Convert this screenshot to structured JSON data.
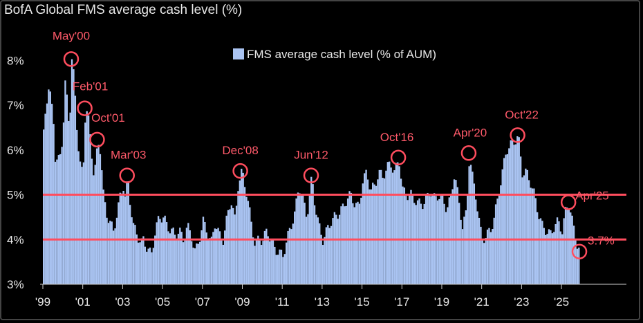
{
  "chart_data": {
    "type": "bar",
    "title": "BofA Global FMS average cash level (%)",
    "legend": "FMS average cash level (% of AUM)",
    "legend_position": "top-center",
    "xlabel": "",
    "ylabel": "",
    "ylim": [
      3,
      8.5
    ],
    "xlim": [
      1999.0,
      2026.8
    ],
    "yticks": [
      "3%",
      "4%",
      "5%",
      "6%",
      "7%",
      "8%"
    ],
    "yticks_values": [
      3,
      4,
      5,
      6,
      7,
      8
    ],
    "xticks": [
      "'99",
      "'01",
      "'03",
      "'05",
      "'07",
      "'09",
      "'11",
      "'13",
      "'15",
      "'17",
      "'19",
      "'21",
      "'23",
      "'25"
    ],
    "xticks_values": [
      1999,
      2001,
      2003,
      2005,
      2007,
      2009,
      2011,
      2013,
      2015,
      2017,
      2019,
      2021,
      2023,
      2025
    ],
    "bar_color": "#aac4f2",
    "reference_lines": [
      4.0,
      5.0
    ],
    "reference_color": "#ff4d5e",
    "series_points": [
      [
        1999.0,
        6.4
      ],
      [
        1999.1,
        7.0
      ],
      [
        1999.25,
        7.3
      ],
      [
        1999.4,
        7.1
      ],
      [
        1999.5,
        6.7
      ],
      [
        1999.6,
        5.6
      ],
      [
        1999.75,
        5.8
      ],
      [
        1999.9,
        6.1
      ],
      [
        2000.0,
        6.6
      ],
      [
        2000.1,
        7.6
      ],
      [
        2000.2,
        7.0
      ],
      [
        2000.3,
        6.5
      ],
      [
        2000.42,
        8.0
      ],
      [
        2000.55,
        7.5
      ],
      [
        2000.7,
        6.3
      ],
      [
        2000.8,
        5.7
      ],
      [
        2000.9,
        5.5
      ],
      [
        2001.0,
        5.8
      ],
      [
        2001.1,
        6.9
      ],
      [
        2001.2,
        6.8
      ],
      [
        2001.3,
        6.5
      ],
      [
        2001.4,
        6.0
      ],
      [
        2001.5,
        5.5
      ],
      [
        2001.6,
        5.6
      ],
      [
        2001.72,
        6.2
      ],
      [
        2001.85,
        6.0
      ],
      [
        2002.0,
        5.0
      ],
      [
        2002.15,
        4.6
      ],
      [
        2002.3,
        4.4
      ],
      [
        2002.5,
        4.2
      ],
      [
        2002.7,
        4.6
      ],
      [
        2002.85,
        5.0
      ],
      [
        2003.0,
        5.2
      ],
      [
        2003.1,
        4.9
      ],
      [
        2003.22,
        5.4
      ],
      [
        2003.35,
        4.8
      ],
      [
        2003.5,
        4.3
      ],
      [
        2003.7,
        4.1
      ],
      [
        2003.9,
        3.9
      ],
      [
        2004.0,
        4.0
      ],
      [
        2004.2,
        3.8
      ],
      [
        2004.4,
        3.65
      ],
      [
        2004.6,
        4.2
      ],
      [
        2004.8,
        4.5
      ],
      [
        2005.0,
        4.5
      ],
      [
        2005.2,
        4.3
      ],
      [
        2005.4,
        4.2
      ],
      [
        2005.6,
        4.1
      ],
      [
        2005.8,
        4.2
      ],
      [
        2006.0,
        4.0
      ],
      [
        2006.2,
        4.3
      ],
      [
        2006.4,
        4.1
      ],
      [
        2006.6,
        3.7
      ],
      [
        2006.8,
        4.0
      ],
      [
        2007.0,
        4.4
      ],
      [
        2007.2,
        4.2
      ],
      [
        2007.4,
        3.9
      ],
      [
        2007.6,
        4.4
      ],
      [
        2007.8,
        4.1
      ],
      [
        2008.0,
        4.0
      ],
      [
        2008.2,
        4.5
      ],
      [
        2008.4,
        4.9
      ],
      [
        2008.6,
        4.4
      ],
      [
        2008.75,
        5.2
      ],
      [
        2008.9,
        5.5
      ],
      [
        2009.0,
        5.4
      ],
      [
        2009.2,
        5.0
      ],
      [
        2009.4,
        4.4
      ],
      [
        2009.6,
        3.9
      ],
      [
        2009.8,
        4.0
      ],
      [
        2010.0,
        4.0
      ],
      [
        2010.2,
        4.2
      ],
      [
        2010.4,
        4.0
      ],
      [
        2010.6,
        3.8
      ],
      [
        2010.8,
        3.7
      ],
      [
        2011.0,
        3.65
      ],
      [
        2011.2,
        4.0
      ],
      [
        2011.4,
        4.3
      ],
      [
        2011.6,
        4.6
      ],
      [
        2011.8,
        5.2
      ],
      [
        2012.0,
        4.9
      ],
      [
        2012.2,
        4.5
      ],
      [
        2012.45,
        5.4
      ],
      [
        2012.6,
        4.8
      ],
      [
        2012.8,
        4.3
      ],
      [
        2013.0,
        4.0
      ],
      [
        2013.2,
        4.2
      ],
      [
        2013.4,
        4.4
      ],
      [
        2013.6,
        4.5
      ],
      [
        2013.8,
        4.6
      ],
      [
        2014.0,
        4.7
      ],
      [
        2014.2,
        4.9
      ],
      [
        2014.4,
        5.0
      ],
      [
        2014.6,
        4.8
      ],
      [
        2014.8,
        4.7
      ],
      [
        2015.0,
        5.3
      ],
      [
        2015.2,
        5.5
      ],
      [
        2015.4,
        5.1
      ],
      [
        2015.6,
        5.2
      ],
      [
        2015.8,
        5.5
      ],
      [
        2016.0,
        5.4
      ],
      [
        2016.2,
        5.6
      ],
      [
        2016.4,
        5.7
      ],
      [
        2016.6,
        5.5
      ],
      [
        2016.82,
        5.8
      ],
      [
        2017.0,
        5.1
      ],
      [
        2017.2,
        5.0
      ],
      [
        2017.4,
        5.0
      ],
      [
        2017.6,
        4.9
      ],
      [
        2017.8,
        4.8
      ],
      [
        2018.0,
        4.8
      ],
      [
        2018.2,
        4.9
      ],
      [
        2018.4,
        5.1
      ],
      [
        2018.6,
        4.9
      ],
      [
        2018.8,
        5.0
      ],
      [
        2019.0,
        4.9
      ],
      [
        2019.2,
        4.7
      ],
      [
        2019.4,
        4.9
      ],
      [
        2019.6,
        5.5
      ],
      [
        2019.8,
        4.9
      ],
      [
        2020.0,
        4.3
      ],
      [
        2020.2,
        4.6
      ],
      [
        2020.35,
        5.9
      ],
      [
        2020.5,
        5.4
      ],
      [
        2020.7,
        4.9
      ],
      [
        2020.9,
        4.2
      ],
      [
        2021.0,
        4.0
      ],
      [
        2021.2,
        4.1
      ],
      [
        2021.4,
        4.2
      ],
      [
        2021.6,
        4.5
      ],
      [
        2021.8,
        5.0
      ],
      [
        2022.0,
        5.5
      ],
      [
        2022.2,
        6.0
      ],
      [
        2022.4,
        6.1
      ],
      [
        2022.6,
        6.2
      ],
      [
        2022.8,
        6.3
      ],
      [
        2023.0,
        5.5
      ],
      [
        2023.2,
        5.5
      ],
      [
        2023.4,
        5.3
      ],
      [
        2023.6,
        5.0
      ],
      [
        2023.8,
        4.6
      ],
      [
        2024.0,
        4.3
      ],
      [
        2024.2,
        4.2
      ],
      [
        2024.4,
        4.1
      ],
      [
        2024.6,
        4.3
      ],
      [
        2024.8,
        4.4
      ],
      [
        2025.0,
        4.2
      ],
      [
        2025.2,
        4.7
      ],
      [
        2025.35,
        4.8
      ],
      [
        2025.55,
        4.3
      ],
      [
        2025.75,
        3.9
      ],
      [
        2025.9,
        3.7
      ]
    ],
    "annotations": [
      {
        "label": "May'00",
        "x": 2000.42,
        "y": 8.0
      },
      {
        "label": "Feb'01",
        "x": 2001.1,
        "y": 6.9
      },
      {
        "label": "Oct'01",
        "x": 2001.72,
        "y": 6.2
      },
      {
        "label": "Mar'03",
        "x": 2003.22,
        "y": 5.4
      },
      {
        "label": "Dec'08",
        "x": 2008.9,
        "y": 5.5
      },
      {
        "label": "Jun'12",
        "x": 2012.45,
        "y": 5.4
      },
      {
        "label": "Oct'16",
        "x": 2016.82,
        "y": 5.8
      },
      {
        "label": "Apr'20",
        "x": 2020.35,
        "y": 5.9
      },
      {
        "label": "Oct'22",
        "x": 2022.8,
        "y": 6.3
      },
      {
        "label": "Apr'25",
        "x": 2025.35,
        "y": 4.8
      },
      {
        "label": "3.7%",
        "x": 2025.9,
        "y": 3.7
      }
    ]
  }
}
